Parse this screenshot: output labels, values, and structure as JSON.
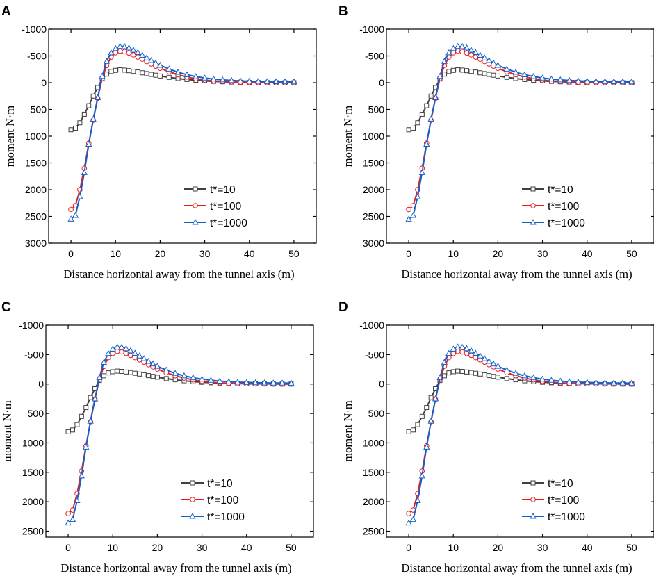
{
  "colors": {
    "t10": "#404040",
    "t100": "#ee1c1c",
    "t1000": "#1560c8"
  },
  "chart_data": [
    {
      "panel": "A",
      "type": "line",
      "xlabel": "Distance horizontal away from the tunnel axis (m)",
      "ylabel": "moment N·m",
      "xlim": [
        -5,
        55
      ],
      "ylim": [
        3000,
        -1000
      ],
      "xticks": [
        0,
        10,
        20,
        30,
        40,
        50
      ],
      "yticks": [
        3000,
        2500,
        2000,
        1500,
        1000,
        500,
        0,
        -500,
        -1000
      ],
      "series": [
        {
          "name": "t*=10",
          "key": "t10",
          "marker": "square",
          "x": [
            0,
            1,
            2,
            3,
            4,
            5,
            6,
            7,
            8,
            9,
            10,
            11,
            12,
            13,
            14,
            15,
            16,
            17,
            18,
            19,
            20,
            22,
            24,
            26,
            28,
            30,
            32,
            34,
            36,
            38,
            40,
            42,
            44,
            46,
            48,
            50
          ],
          "y": [
            880,
            850,
            750,
            590,
            430,
            250,
            90,
            -70,
            -160,
            -210,
            -230,
            -240,
            -235,
            -225,
            -212,
            -200,
            -185,
            -170,
            -155,
            -140,
            -125,
            -100,
            -78,
            -60,
            -45,
            -33,
            -24,
            -17,
            -12,
            -8,
            -5,
            -3,
            -2,
            -1,
            0,
            0
          ]
        },
        {
          "name": "t*=100",
          "key": "t100",
          "marker": "circle",
          "x": [
            0,
            1,
            2,
            3,
            4,
            5,
            6,
            7,
            8,
            9,
            10,
            11,
            12,
            13,
            14,
            15,
            16,
            17,
            18,
            19,
            20,
            22,
            24,
            26,
            28,
            30,
            32,
            34,
            36,
            38,
            40,
            42,
            44,
            46,
            48,
            50
          ],
          "y": [
            2370,
            2300,
            2000,
            1600,
            1130,
            700,
            290,
            -80,
            -320,
            -480,
            -560,
            -590,
            -580,
            -555,
            -520,
            -480,
            -440,
            -395,
            -350,
            -310,
            -270,
            -205,
            -150,
            -108,
            -75,
            -50,
            -33,
            -22,
            -14,
            -9,
            -5,
            -3,
            -2,
            -1,
            0,
            0
          ]
        },
        {
          "name": "t*=1000",
          "key": "t1000",
          "marker": "triangle",
          "x": [
            0,
            1,
            2,
            3,
            4,
            5,
            6,
            7,
            8,
            9,
            10,
            11,
            12,
            13,
            14,
            15,
            16,
            17,
            18,
            19,
            20,
            22,
            24,
            26,
            28,
            30,
            32,
            34,
            36,
            38,
            40,
            42,
            44,
            46,
            48,
            50
          ],
          "y": [
            2550,
            2480,
            2130,
            1680,
            1150,
            680,
            280,
            -120,
            -400,
            -560,
            -640,
            -680,
            -675,
            -650,
            -610,
            -565,
            -515,
            -465,
            -415,
            -370,
            -325,
            -255,
            -195,
            -150,
            -115,
            -88,
            -68,
            -53,
            -42,
            -34,
            -28,
            -24,
            -21,
            -19,
            -18,
            -17
          ]
        }
      ],
      "legend": "lower-right"
    },
    {
      "panel": "B",
      "type": "line",
      "xlabel": "Distance horizontal away from the tunnel axis (m)",
      "ylabel": "moment N·m",
      "xlim": [
        -5,
        55
      ],
      "ylim": [
        3000,
        -1000
      ],
      "xticks": [
        0,
        10,
        20,
        30,
        40,
        50
      ],
      "yticks": [
        3000,
        2500,
        2000,
        1500,
        1000,
        500,
        0,
        -500,
        -1000
      ],
      "series": [
        {
          "name": "t*=10",
          "key": "t10",
          "marker": "square",
          "x": [
            0,
            1,
            2,
            3,
            4,
            5,
            6,
            7,
            8,
            9,
            10,
            11,
            12,
            13,
            14,
            15,
            16,
            17,
            18,
            19,
            20,
            22,
            24,
            26,
            28,
            30,
            32,
            34,
            36,
            38,
            40,
            42,
            44,
            46,
            48,
            50
          ],
          "y": [
            880,
            850,
            750,
            590,
            430,
            250,
            90,
            -70,
            -160,
            -210,
            -230,
            -240,
            -235,
            -225,
            -212,
            -200,
            -185,
            -170,
            -155,
            -140,
            -125,
            -100,
            -78,
            -60,
            -45,
            -33,
            -24,
            -17,
            -12,
            -8,
            -5,
            -3,
            -2,
            -1,
            0,
            0
          ]
        },
        {
          "name": "t*=100",
          "key": "t100",
          "marker": "circle",
          "x": [
            0,
            1,
            2,
            3,
            4,
            5,
            6,
            7,
            8,
            9,
            10,
            11,
            12,
            13,
            14,
            15,
            16,
            17,
            18,
            19,
            20,
            22,
            24,
            26,
            28,
            30,
            32,
            34,
            36,
            38,
            40,
            42,
            44,
            46,
            48,
            50
          ],
          "y": [
            2370,
            2300,
            2000,
            1600,
            1130,
            700,
            290,
            -80,
            -320,
            -480,
            -560,
            -590,
            -580,
            -555,
            -520,
            -480,
            -440,
            -395,
            -350,
            -310,
            -270,
            -205,
            -150,
            -108,
            -75,
            -50,
            -33,
            -22,
            -14,
            -9,
            -5,
            -3,
            -2,
            -1,
            0,
            0
          ]
        },
        {
          "name": "t*=1000",
          "key": "t1000",
          "marker": "triangle",
          "x": [
            0,
            1,
            2,
            3,
            4,
            5,
            6,
            7,
            8,
            9,
            10,
            11,
            12,
            13,
            14,
            15,
            16,
            17,
            18,
            19,
            20,
            22,
            24,
            26,
            28,
            30,
            32,
            34,
            36,
            38,
            40,
            42,
            44,
            46,
            48,
            50
          ],
          "y": [
            2550,
            2480,
            2130,
            1680,
            1150,
            680,
            280,
            -120,
            -400,
            -560,
            -640,
            -680,
            -675,
            -650,
            -610,
            -565,
            -515,
            -465,
            -415,
            -370,
            -325,
            -255,
            -195,
            -150,
            -115,
            -88,
            -68,
            -53,
            -42,
            -34,
            -28,
            -24,
            -21,
            -19,
            -18,
            -17
          ]
        }
      ],
      "legend": "lower-right"
    },
    {
      "panel": "C",
      "type": "line",
      "xlabel": "Distance horizontal away from the tunnel axis (m)",
      "ylabel": "moment N·m",
      "xlim": [
        -5,
        55
      ],
      "ylim": [
        2600,
        -1000
      ],
      "xticks": [
        0,
        10,
        20,
        30,
        40,
        50
      ],
      "yticks": [
        2500,
        2000,
        1500,
        1000,
        500,
        0,
        -500,
        -1000
      ],
      "series": [
        {
          "name": "t*=10",
          "key": "t10",
          "marker": "square",
          "x": [
            0,
            1,
            2,
            3,
            4,
            5,
            6,
            7,
            8,
            9,
            10,
            11,
            12,
            13,
            14,
            15,
            16,
            17,
            18,
            19,
            20,
            22,
            24,
            26,
            28,
            30,
            32,
            34,
            36,
            38,
            40,
            42,
            44,
            46,
            48,
            50
          ],
          "y": [
            810,
            780,
            690,
            550,
            400,
            230,
            80,
            -60,
            -140,
            -190,
            -210,
            -220,
            -215,
            -205,
            -195,
            -183,
            -170,
            -157,
            -143,
            -130,
            -116,
            -93,
            -72,
            -55,
            -41,
            -30,
            -22,
            -16,
            -11,
            -7,
            -5,
            -3,
            -2,
            -1,
            0,
            0
          ]
        },
        {
          "name": "t*=100",
          "key": "t100",
          "marker": "circle",
          "x": [
            0,
            1,
            2,
            3,
            4,
            5,
            6,
            7,
            8,
            9,
            10,
            11,
            12,
            13,
            14,
            15,
            16,
            17,
            18,
            19,
            20,
            22,
            24,
            26,
            28,
            30,
            32,
            34,
            36,
            38,
            40,
            42,
            44,
            46,
            48,
            50
          ],
          "y": [
            2200,
            2140,
            1860,
            1480,
            1050,
            640,
            260,
            -80,
            -300,
            -450,
            -520,
            -555,
            -545,
            -520,
            -488,
            -450,
            -412,
            -372,
            -330,
            -292,
            -255,
            -193,
            -142,
            -102,
            -71,
            -48,
            -32,
            -21,
            -14,
            -9,
            -5,
            -3,
            -2,
            -1,
            0,
            0
          ]
        },
        {
          "name": "t*=1000",
          "key": "t1000",
          "marker": "triangle",
          "x": [
            0,
            1,
            2,
            3,
            4,
            5,
            6,
            7,
            8,
            9,
            10,
            11,
            12,
            13,
            14,
            15,
            16,
            17,
            18,
            19,
            20,
            22,
            24,
            26,
            28,
            30,
            32,
            34,
            36,
            38,
            40,
            42,
            44,
            46,
            48,
            50
          ],
          "y": [
            2360,
            2300,
            1980,
            1560,
            1070,
            630,
            250,
            -110,
            -370,
            -520,
            -595,
            -630,
            -625,
            -602,
            -565,
            -523,
            -478,
            -432,
            -386,
            -344,
            -302,
            -238,
            -182,
            -140,
            -108,
            -83,
            -64,
            -50,
            -40,
            -32,
            -27,
            -23,
            -20,
            -18,
            -17,
            -16
          ]
        }
      ],
      "legend": "lower-right"
    },
    {
      "panel": "D",
      "type": "line",
      "xlabel": "Distance horizontal away from the tunnel axis (m)",
      "ylabel": "moment N·m",
      "xlim": [
        -5,
        55
      ],
      "ylim": [
        2600,
        -1000
      ],
      "xticks": [
        0,
        10,
        20,
        30,
        40,
        50
      ],
      "yticks": [
        2500,
        2000,
        1500,
        1000,
        500,
        0,
        -500,
        -1000
      ],
      "series": [
        {
          "name": "t*=10",
          "key": "t10",
          "marker": "square",
          "x": [
            0,
            1,
            2,
            3,
            4,
            5,
            6,
            7,
            8,
            9,
            10,
            11,
            12,
            13,
            14,
            15,
            16,
            17,
            18,
            19,
            20,
            22,
            24,
            26,
            28,
            30,
            32,
            34,
            36,
            38,
            40,
            42,
            44,
            46,
            48,
            50
          ],
          "y": [
            810,
            780,
            690,
            550,
            400,
            230,
            80,
            -60,
            -140,
            -190,
            -210,
            -220,
            -215,
            -205,
            -195,
            -183,
            -170,
            -157,
            -143,
            -130,
            -116,
            -93,
            -72,
            -55,
            -41,
            -30,
            -22,
            -16,
            -11,
            -7,
            -5,
            -3,
            -2,
            -1,
            0,
            0
          ]
        },
        {
          "name": "t*=100",
          "key": "t100",
          "marker": "circle",
          "x": [
            0,
            1,
            2,
            3,
            4,
            5,
            6,
            7,
            8,
            9,
            10,
            11,
            12,
            13,
            14,
            15,
            16,
            17,
            18,
            19,
            20,
            22,
            24,
            26,
            28,
            30,
            32,
            34,
            36,
            38,
            40,
            42,
            44,
            46,
            48,
            50
          ],
          "y": [
            2200,
            2140,
            1860,
            1480,
            1050,
            640,
            260,
            -80,
            -300,
            -450,
            -520,
            -555,
            -545,
            -520,
            -488,
            -450,
            -412,
            -372,
            -330,
            -292,
            -255,
            -193,
            -142,
            -102,
            -71,
            -48,
            -32,
            -21,
            -14,
            -9,
            -5,
            -3,
            -2,
            -1,
            0,
            0
          ]
        },
        {
          "name": "t*=1000",
          "key": "t1000",
          "marker": "triangle",
          "x": [
            0,
            1,
            2,
            3,
            4,
            5,
            6,
            7,
            8,
            9,
            10,
            11,
            12,
            13,
            14,
            15,
            16,
            17,
            18,
            19,
            20,
            22,
            24,
            26,
            28,
            30,
            32,
            34,
            36,
            38,
            40,
            42,
            44,
            46,
            48,
            50
          ],
          "y": [
            2360,
            2300,
            1980,
            1560,
            1070,
            630,
            250,
            -110,
            -370,
            -520,
            -595,
            -630,
            -625,
            -602,
            -565,
            -523,
            -478,
            -432,
            -386,
            -344,
            -302,
            -238,
            -182,
            -140,
            -108,
            -83,
            -64,
            -50,
            -40,
            -32,
            -27,
            -23,
            -20,
            -18,
            -17,
            -16
          ]
        }
      ],
      "legend": "lower-right"
    }
  ]
}
